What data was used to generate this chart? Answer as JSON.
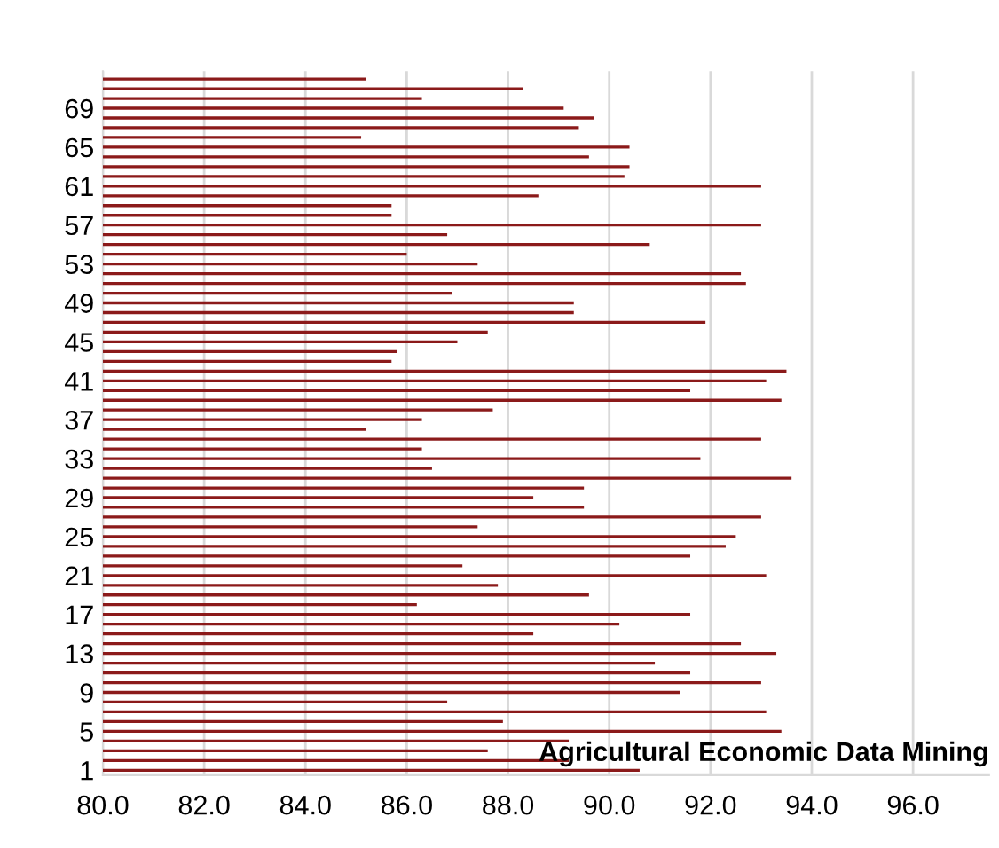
{
  "chart_data": {
    "type": "bar",
    "orientation": "horizontal",
    "annotations": [
      "Agricultural Economic Data Mining"
    ],
    "categories": [
      null,
      null,
      null,
      "69",
      null,
      null,
      null,
      "65",
      null,
      null,
      null,
      "61",
      null,
      null,
      null,
      "57",
      null,
      null,
      null,
      "53",
      null,
      null,
      null,
      "49",
      null,
      null,
      null,
      "45",
      null,
      null,
      null,
      "41",
      null,
      null,
      null,
      "37",
      null,
      null,
      null,
      "33",
      null,
      null,
      null,
      "29",
      null,
      null,
      null,
      "25",
      null,
      null,
      null,
      "21",
      null,
      null,
      null,
      "17",
      null,
      null,
      null,
      "13",
      null,
      null,
      null,
      "9",
      null,
      null,
      null,
      "5",
      null,
      null,
      null,
      "1"
    ],
    "values": [
      85.2,
      88.3,
      86.3,
      89.1,
      89.7,
      89.4,
      85.1,
      90.4,
      89.6,
      90.4,
      90.3,
      93.0,
      88.6,
      85.7,
      85.7,
      93.0,
      86.8,
      90.8,
      86.0,
      87.4,
      92.6,
      92.7,
      86.9,
      89.3,
      89.3,
      91.9,
      87.6,
      87.0,
      85.8,
      85.7,
      93.5,
      93.1,
      91.6,
      93.4,
      87.7,
      86.3,
      85.2,
      93.0,
      86.3,
      91.8,
      86.5,
      93.6,
      89.5,
      88.5,
      89.5,
      93.0,
      87.4,
      92.5,
      92.3,
      91.6,
      87.1,
      93.1,
      87.8,
      89.6,
      86.2,
      91.6,
      90.2,
      88.5,
      92.6,
      93.3,
      90.9,
      91.6,
      93.0,
      91.4,
      86.8,
      93.1,
      87.9,
      93.4,
      89.2,
      87.6,
      89.2,
      90.6
    ],
    "color": "#8b1a1a",
    "xlim": [
      80,
      97.5
    ],
    "xticks": [
      {
        "value": 80,
        "label": "80.0"
      },
      {
        "value": 82,
        "label": "82.0"
      },
      {
        "value": 84,
        "label": "84.0"
      },
      {
        "value": 86,
        "label": "86.0"
      },
      {
        "value": 88,
        "label": "88.0"
      },
      {
        "value": 90,
        "label": "90.0"
      },
      {
        "value": 92,
        "label": "92.0"
      },
      {
        "value": 94,
        "label": "94.0"
      },
      {
        "value": 96,
        "label": "96.0"
      }
    ],
    "grid": "x"
  }
}
